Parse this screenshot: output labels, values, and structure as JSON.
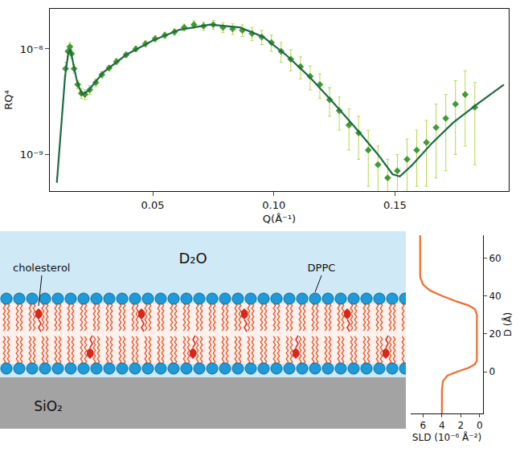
{
  "chart_data": [
    {
      "type": "scatter",
      "x_label": "Q(Å⁻¹)",
      "y_label": "RQ⁴",
      "log": "y",
      "grid": false,
      "xlim": [
        0.0075,
        0.197
      ],
      "ylim": [
        4.5e-10,
        2.4e-08
      ],
      "xticks": [
        0.05,
        {
          "value": 0.1,
          "label": "0.10"
        },
        0.15
      ],
      "yticks": [
        {
          "value": 1e-09,
          "label": "10⁻⁹"
        },
        {
          "value": 1e-08,
          "label": "10⁻⁸"
        }
      ],
      "series": [
        {
          "type": "scatter",
          "marker": "diamond",
          "color": "#3d9f2b",
          "x": [
            0.014,
            0.015,
            0.0158,
            0.0165,
            0.0175,
            0.019,
            0.0205,
            0.022,
            0.024,
            0.0265,
            0.029,
            0.032,
            0.035,
            0.039,
            0.043,
            0.047,
            0.051,
            0.055,
            0.059,
            0.063,
            0.067,
            0.071,
            0.075,
            0.079,
            0.083,
            0.087,
            0.091,
            0.095,
            0.099,
            0.103,
            0.107,
            0.111,
            0.115,
            0.119,
            0.123,
            0.127,
            0.131,
            0.135,
            0.139,
            0.143,
            0.147,
            0.151,
            0.155,
            0.159,
            0.163,
            0.167,
            0.171,
            0.175,
            0.179,
            0.183
          ],
          "values": [
            6.5e-09,
            9.5e-09,
            1.05e-08,
            9e-09,
            6.5e-09,
            4.6e-09,
            3.8e-09,
            3.7e-09,
            4.1e-09,
            4.8e-09,
            5.7e-09,
            6.6e-09,
            7.6e-09,
            8.8e-09,
            1e-08,
            1.12e-08,
            1.25e-08,
            1.35e-08,
            1.45e-08,
            1.6e-08,
            1.7e-08,
            1.65e-08,
            1.7e-08,
            1.6e-08,
            1.55e-08,
            1.5e-08,
            1.4e-08,
            1.3e-08,
            1.15e-08,
            9.5e-09,
            8e-09,
            6.8e-09,
            5.5e-09,
            4.6e-09,
            3.3e-09,
            2.6e-09,
            1.9e-09,
            1.6e-09,
            1.1e-09,
            8e-10,
            6e-10,
            7e-10,
            9e-10,
            1.1e-09,
            1.3e-09,
            1.8e-09,
            2.2e-09,
            3e-09,
            3.7e-09,
            2.8e-09
          ],
          "error": [
            1e-09,
            1e-09,
            1e-09,
            8e-10,
            6e-10,
            4e-10,
            4e-10,
            4e-10,
            4e-10,
            4e-10,
            4e-10,
            4e-10,
            5e-10,
            5e-10,
            6e-10,
            7e-10,
            8e-10,
            9e-10,
            1e-09,
            1.2e-09,
            1.5e-09,
            1.5e-09,
            1.6e-09,
            1.7e-09,
            1.8e-09,
            1.9e-09,
            2e-09,
            2e-09,
            2e-09,
            2e-09,
            1.8e-09,
            1.6e-09,
            1.4e-09,
            1.2e-09,
            1e-09,
            9e-10,
            8e-10,
            7e-10,
            6e-10,
            4e-10,
            3e-10,
            3e-10,
            5e-10,
            6e-10,
            8e-10,
            1.2e-09,
            1.5e-09,
            2e-09,
            2.5e-09,
            2e-09
          ]
        },
        {
          "type": "line",
          "color": "#1d6b45",
          "x": [
            0.0104,
            0.0125,
            0.0138,
            0.0151,
            0.016,
            0.017,
            0.0185,
            0.0195,
            0.0208,
            0.0233,
            0.0296,
            0.039,
            0.05,
            0.061,
            0.0736,
            0.086,
            0.0956,
            0.105,
            0.1145,
            0.124,
            0.133,
            0.143,
            0.149,
            0.152,
            0.157,
            0.165,
            0.174,
            0.184,
            0.195
          ],
          "values": [
            5.4e-10,
            2.2e-09,
            5.5e-09,
            9.1e-09,
            1e-08,
            7.6e-09,
            5.2e-09,
            4.4e-09,
            3.7e-09,
            4e-09,
            6e-09,
            8.8e-09,
            1.2e-08,
            1.52e-08,
            1.7e-08,
            1.6e-08,
            1.3e-08,
            8.8e-09,
            5.5e-09,
            3.2e-09,
            1.87e-09,
            1e-09,
            6.5e-10,
            6.2e-10,
            7.9e-10,
            1.26e-09,
            2e-09,
            3e-09,
            4.6e-09
          ]
        }
      ]
    },
    {
      "type": "line",
      "x_label": "SLD (10⁻⁶ Å⁻²)",
      "y_label": "D (Å)",
      "grid": false,
      "xlim": [
        7.3,
        -0.35
      ],
      "ylim": [
        -22,
        72
      ],
      "xticks": [
        0,
        2,
        4,
        6
      ],
      "yticks": [
        0,
        20,
        40,
        60
      ],
      "series": [
        {
          "type": "line",
          "color": "#f26b2a",
          "x": [
            4.0,
            4.0,
            3.9,
            3.4,
            2.4,
            1.2,
            0.5,
            0.3,
            0.3,
            0.3,
            0.5,
            1.2,
            2.4,
            4.0,
            5.3,
            6.0,
            6.3,
            6.3
          ],
          "values": [
            -22,
            -10,
            -5,
            -2,
            0,
            2,
            4,
            6,
            10,
            30,
            33,
            35,
            37,
            40,
            43,
            46,
            50,
            72
          ]
        }
      ]
    }
  ],
  "diagram": {
    "solvent": "D₂O",
    "substrate": "SiO₂",
    "lipid": "DPPC",
    "sterol": "cholesterol"
  }
}
